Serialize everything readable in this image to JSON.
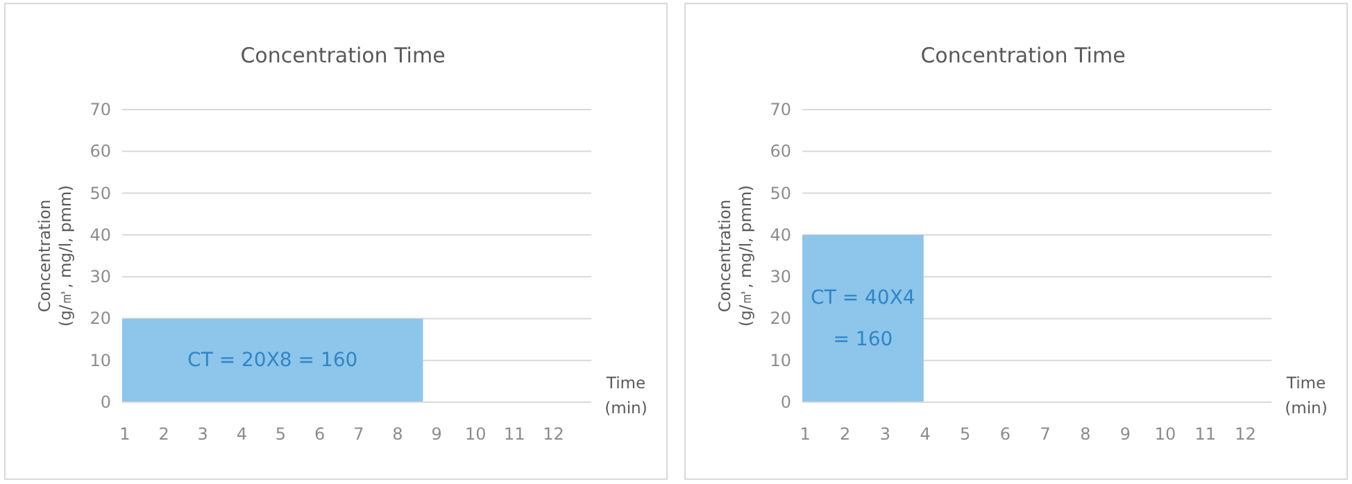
{
  "chart_data": [
    {
      "type": "area",
      "title": "Concentration Time",
      "xlabel": "Time (min)",
      "ylabel": "Concentration (g/㎥, mg/l, pmm)",
      "xlim": [
        0.93,
        12.97
      ],
      "xticks": [
        1,
        2,
        3,
        4,
        5,
        6,
        7,
        8,
        9,
        10,
        11,
        12
      ],
      "ylim": [
        0,
        70
      ],
      "yticks": [
        0,
        10,
        20,
        30,
        40,
        50,
        60,
        70
      ],
      "grid": "y",
      "series": [
        {
          "color": "#8ec5ea",
          "x": [
            0.93,
            8.65
          ],
          "values": [
            20,
            20
          ]
        }
      ],
      "annotations": [
        "CT = 20X8 = 160"
      ]
    },
    {
      "type": "area",
      "title": "Concentration Time",
      "xlabel": "Time (min)",
      "ylabel": "Concentration (g/㎥, mg/l, pmm)",
      "xlim": [
        0.93,
        12.65
      ],
      "xticks": [
        1,
        2,
        3,
        4,
        5,
        6,
        7,
        8,
        9,
        10,
        11,
        12
      ],
      "ylim": [
        0,
        70
      ],
      "yticks": [
        0,
        10,
        20,
        30,
        40,
        50,
        60,
        70
      ],
      "grid": "y",
      "series": [
        {
          "color": "#8ec5ea",
          "x": [
            0.93,
            3.96
          ],
          "values": [
            40,
            40
          ]
        }
      ],
      "annotations": [
        "CT = 40X4 = 160"
      ]
    }
  ]
}
